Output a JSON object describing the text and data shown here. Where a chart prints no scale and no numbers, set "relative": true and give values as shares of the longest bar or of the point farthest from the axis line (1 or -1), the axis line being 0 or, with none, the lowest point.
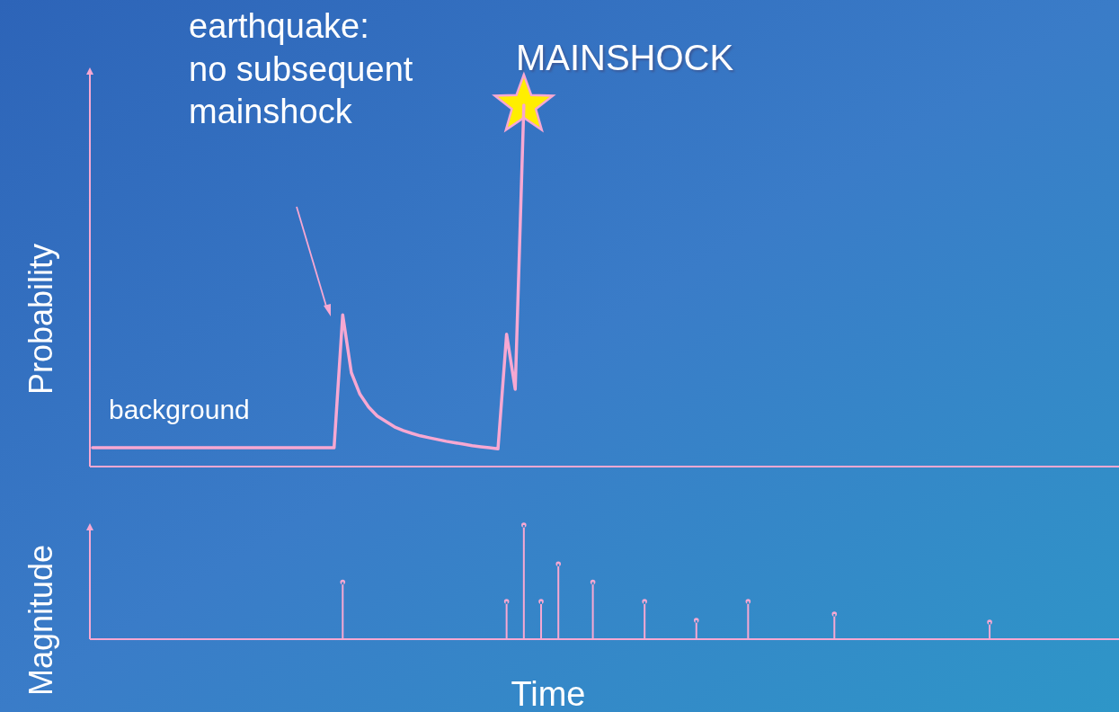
{
  "chart_data": [
    {
      "type": "line",
      "ylabel": "Probability",
      "relative": true,
      "categories": [
        null,
        null,
        null,
        null,
        null,
        null,
        null,
        null,
        null,
        null,
        null,
        null,
        null,
        null,
        null,
        null,
        null,
        null,
        null,
        null,
        null,
        null,
        null,
        null,
        null,
        null,
        null,
        null,
        null,
        null,
        null,
        null,
        null,
        null,
        null,
        null,
        null,
        null,
        null,
        null,
        null,
        null,
        null,
        null,
        null,
        null,
        null,
        null,
        null,
        null,
        null,
        null,
        null,
        null,
        null,
        null,
        null,
        null,
        null,
        null,
        null,
        null,
        null,
        null,
        null,
        null,
        null,
        null,
        null,
        null,
        null,
        null,
        null,
        null,
        null,
        null,
        null,
        null,
        null,
        null,
        null,
        null,
        null,
        null,
        null,
        null,
        null,
        null,
        null,
        null,
        null,
        null,
        null,
        null,
        null,
        null,
        null,
        null,
        null,
        null,
        null,
        null,
        null,
        null,
        null,
        null,
        null,
        null,
        null,
        null,
        null,
        null,
        null,
        null,
        null,
        null,
        null,
        null,
        null,
        null
      ],
      "series": [
        {
          "color": "#f7a8d2",
          "values": [
            0.052,
            0.052,
            0.052,
            0.052,
            0.052,
            0.052,
            0.052,
            0.052,
            0.052,
            0.052,
            0.052,
            0.052,
            0.052,
            0.052,
            0.052,
            0.052,
            0.052,
            0.052,
            0.052,
            0.052,
            0.052,
            0.052,
            0.052,
            0.052,
            0.052,
            0.052,
            0.052,
            0.052,
            0.052,
            0.42,
            0.26,
            0.2,
            0.165,
            0.14,
            0.125,
            0.11,
            0.1,
            0.092,
            0.085,
            0.08,
            0.075,
            0.07,
            0.066,
            0.062,
            0.058,
            0.055,
            0.052,
            0.049,
            0.366,
            0.214,
            1,
            null,
            null,
            null,
            null,
            null,
            null,
            null,
            null,
            null,
            null,
            null,
            null,
            null,
            null,
            null,
            null,
            null,
            null,
            null,
            null,
            null,
            null,
            null,
            null,
            null,
            null,
            null,
            null,
            null,
            null,
            null,
            null,
            null,
            null,
            null,
            null,
            null,
            null,
            null,
            null,
            null,
            null,
            null,
            null,
            null,
            null,
            null,
            null,
            null,
            null,
            null,
            null,
            null,
            null,
            null,
            null,
            null,
            null,
            null,
            null,
            null,
            null,
            null,
            null,
            null,
            null,
            null,
            null,
            null
          ]
        }
      ],
      "annotations": [
        "earthquake:\nno subsequent\nmainshock",
        "MAINSHOCK",
        "background"
      ]
    },
    {
      "type": "lollipop",
      "ylabel": "Magnitude",
      "xlabel": "Time",
      "relative": true,
      "color": "#f7a8d2",
      "categories": [
        null,
        null,
        null,
        null,
        null,
        null,
        null,
        null,
        null,
        null,
        null,
        null,
        null,
        null,
        null,
        null,
        null,
        null,
        null,
        null,
        null,
        null,
        null,
        null,
        null,
        null,
        null,
        null,
        null,
        null,
        null,
        null,
        null,
        null,
        null,
        null,
        null,
        null,
        null,
        null,
        null,
        null,
        null,
        null,
        null,
        null,
        null,
        null,
        null,
        null,
        null,
        null,
        null,
        null,
        null,
        null,
        null,
        null,
        null,
        null,
        null,
        null,
        null,
        null,
        null,
        null,
        null,
        null,
        null,
        null,
        null,
        null,
        null,
        null,
        null,
        null,
        null,
        null,
        null,
        null,
        null,
        null,
        null,
        null,
        null,
        null,
        null,
        null,
        null,
        null,
        null,
        null,
        null,
        null,
        null,
        null,
        null,
        null,
        null,
        null,
        null,
        null,
        null,
        null,
        null,
        null,
        null,
        null,
        null,
        null,
        null,
        null,
        null,
        null,
        null,
        null,
        null,
        null,
        null,
        null
      ],
      "values": [
        null,
        null,
        null,
        null,
        null,
        null,
        null,
        null,
        null,
        null,
        null,
        null,
        null,
        null,
        null,
        null,
        null,
        null,
        null,
        null,
        null,
        null,
        null,
        null,
        null,
        null,
        null,
        null,
        null,
        0.5,
        null,
        null,
        null,
        null,
        null,
        null,
        null,
        null,
        null,
        null,
        null,
        null,
        null,
        null,
        null,
        null,
        null,
        null,
        0.33,
        null,
        1,
        null,
        0.33,
        null,
        0.66,
        null,
        null,
        null,
        0.5,
        null,
        null,
        null,
        null,
        null,
        0.33,
        null,
        null,
        null,
        null,
        null,
        0.165,
        null,
        null,
        null,
        null,
        null,
        0.33,
        null,
        null,
        null,
        null,
        null,
        null,
        null,
        null,
        null,
        0.22,
        null,
        null,
        null,
        null,
        null,
        null,
        null,
        null,
        null,
        null,
        null,
        null,
        null,
        null,
        null,
        null,
        null,
        0.15,
        null,
        null,
        null,
        null,
        null,
        null,
        null,
        null,
        null,
        null,
        null,
        null,
        null,
        null,
        null
      ]
    }
  ]
}
